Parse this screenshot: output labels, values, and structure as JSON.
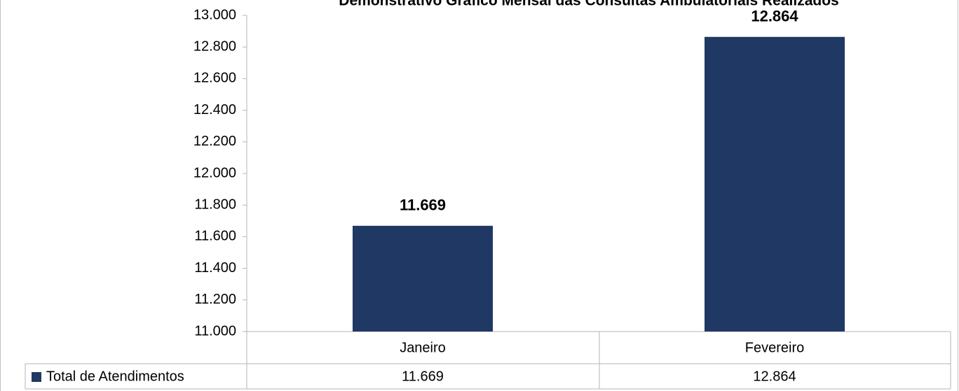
{
  "chart_data": {
    "type": "bar",
    "title": "Demonstrativo Gráfico Mensal das Consultas Ambulatoriais Realizados",
    "categories": [
      "Janeiro",
      "Fevereiro"
    ],
    "series": [
      {
        "name": "Total de Atendimentos",
        "color": "#203864",
        "values": [
          11669,
          12864
        ],
        "value_labels": [
          "11.669",
          "12.864"
        ]
      }
    ],
    "ylim": [
      11000,
      13000
    ],
    "yticks": [
      {
        "value": 11000,
        "label": "11.000"
      },
      {
        "value": 11200,
        "label": "11.200"
      },
      {
        "value": 11400,
        "label": "11.400"
      },
      {
        "value": 11600,
        "label": "11.600"
      },
      {
        "value": 11800,
        "label": "11.800"
      },
      {
        "value": 12000,
        "label": "12.000"
      },
      {
        "value": 12200,
        "label": "12.200"
      },
      {
        "value": 12400,
        "label": "12.400"
      },
      {
        "value": 12600,
        "label": "12.600"
      },
      {
        "value": 12800,
        "label": "12.800"
      },
      {
        "value": 13000,
        "label": "13.000"
      }
    ],
    "grid": false
  }
}
